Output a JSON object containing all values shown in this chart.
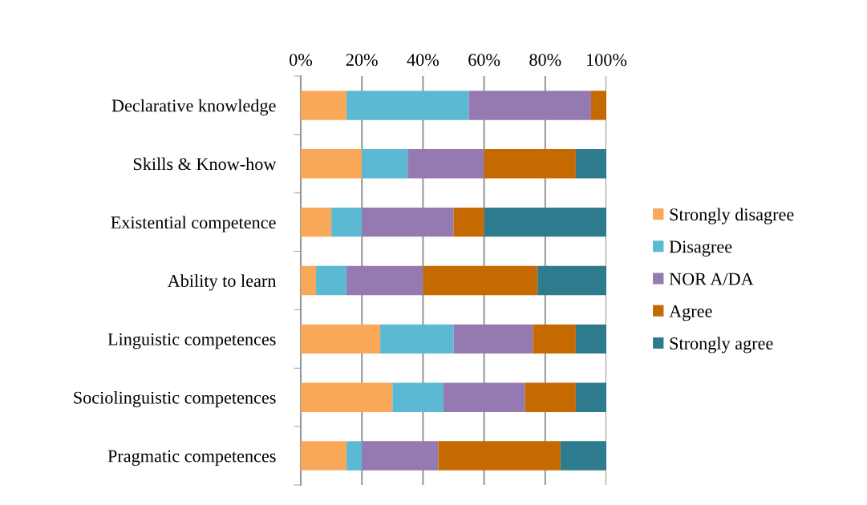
{
  "chart_data": {
    "type": "bar",
    "orientation": "horizontal",
    "stacked": true,
    "categories": [
      "Declarative knowledge",
      "Skills & Know-how",
      "Existential competence",
      "Ability to learn",
      "Linguistic competences",
      "Sociolinguistic competences",
      "Pragmatic competences"
    ],
    "series": [
      {
        "name": "Strongly disagree",
        "color": "#f9a85a",
        "values": [
          15,
          20,
          10,
          5,
          26,
          30,
          15
        ]
      },
      {
        "name": "Disagree",
        "color": "#5bb9d3",
        "values": [
          40,
          15,
          10,
          10,
          24,
          16.7,
          5
        ]
      },
      {
        "name": "NOR A/DA",
        "color": "#9579b1",
        "values": [
          40,
          25,
          30,
          25,
          26,
          26.7,
          25
        ]
      },
      {
        "name": "Agree",
        "color": "#c46a00",
        "values": [
          5,
          30,
          10,
          37.5,
          14,
          16.6,
          40
        ]
      },
      {
        "name": "Strongly agree",
        "color": "#2e7b8e",
        "values": [
          0,
          10,
          40,
          22.5,
          10,
          10,
          15
        ]
      }
    ],
    "xlim": [
      0,
      100
    ],
    "xticks": [
      {
        "value": 0,
        "label": "0%"
      },
      {
        "value": 20,
        "label": "20%"
      },
      {
        "value": 40,
        "label": "40%"
      },
      {
        "value": 60,
        "label": "60%"
      },
      {
        "value": 80,
        "label": "80%"
      },
      {
        "value": 100,
        "label": "100%"
      }
    ],
    "grid": "x",
    "legend": "right"
  }
}
